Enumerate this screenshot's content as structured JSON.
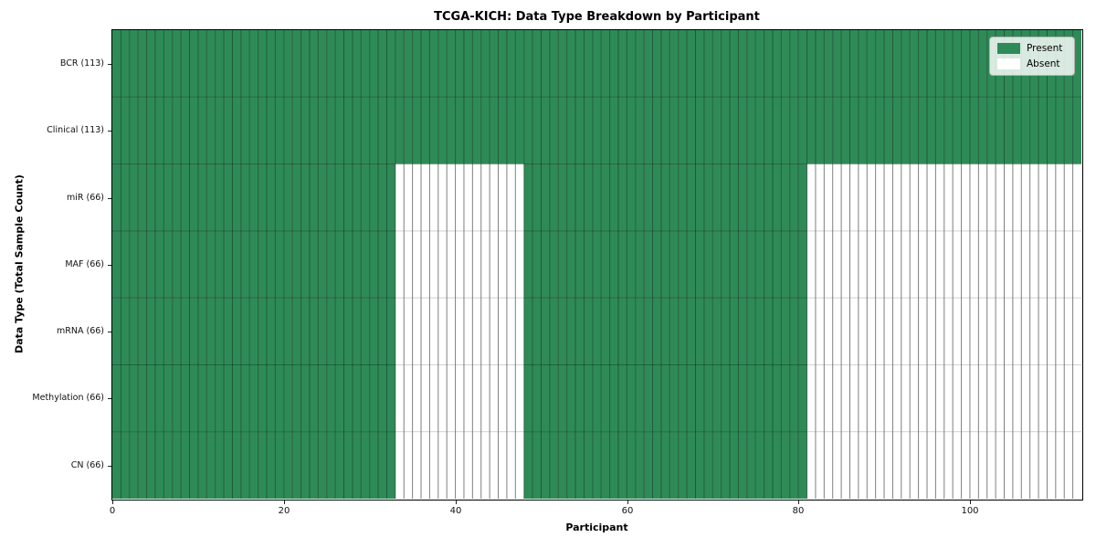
{
  "chart_data": {
    "type": "heatmap",
    "title": "TCGA-KICH: Data Type Breakdown by Participant",
    "xlabel": "Participant",
    "ylabel": "Data Type (Total Sample Count)",
    "x_ticks": [
      0,
      20,
      40,
      60,
      80,
      100
    ],
    "n_participants": 113,
    "xlim": [
      0,
      113
    ],
    "grid": "cell-borders",
    "legend_position": "upper right",
    "rows": [
      {
        "label": "BCR (113)",
        "total_samples": 113,
        "present_runs": [
          [
            0,
            113
          ]
        ]
      },
      {
        "label": "Clinical (113)",
        "total_samples": 113,
        "present_runs": [
          [
            0,
            113
          ]
        ]
      },
      {
        "label": "miR (66)",
        "total_samples": 66,
        "present_runs": [
          [
            0,
            33
          ],
          [
            48,
            81
          ]
        ]
      },
      {
        "label": "MAF (66)",
        "total_samples": 66,
        "present_runs": [
          [
            0,
            33
          ],
          [
            48,
            81
          ]
        ]
      },
      {
        "label": "mRNA (66)",
        "total_samples": 66,
        "present_runs": [
          [
            0,
            33
          ],
          [
            48,
            81
          ]
        ]
      },
      {
        "label": "Methylation (66)",
        "total_samples": 66,
        "present_runs": [
          [
            0,
            33
          ],
          [
            48,
            81
          ]
        ]
      },
      {
        "label": "CN (66)",
        "total_samples": 66,
        "present_runs": [
          [
            0,
            33
          ],
          [
            48,
            81
          ]
        ]
      }
    ],
    "legend": [
      {
        "label": "Present",
        "color": "#2e8b57"
      },
      {
        "label": "Absent",
        "color": "#ffffff"
      }
    ],
    "colors": {
      "present": "#2e8b57",
      "absent": "#ffffff",
      "spine": "#000000"
    }
  }
}
